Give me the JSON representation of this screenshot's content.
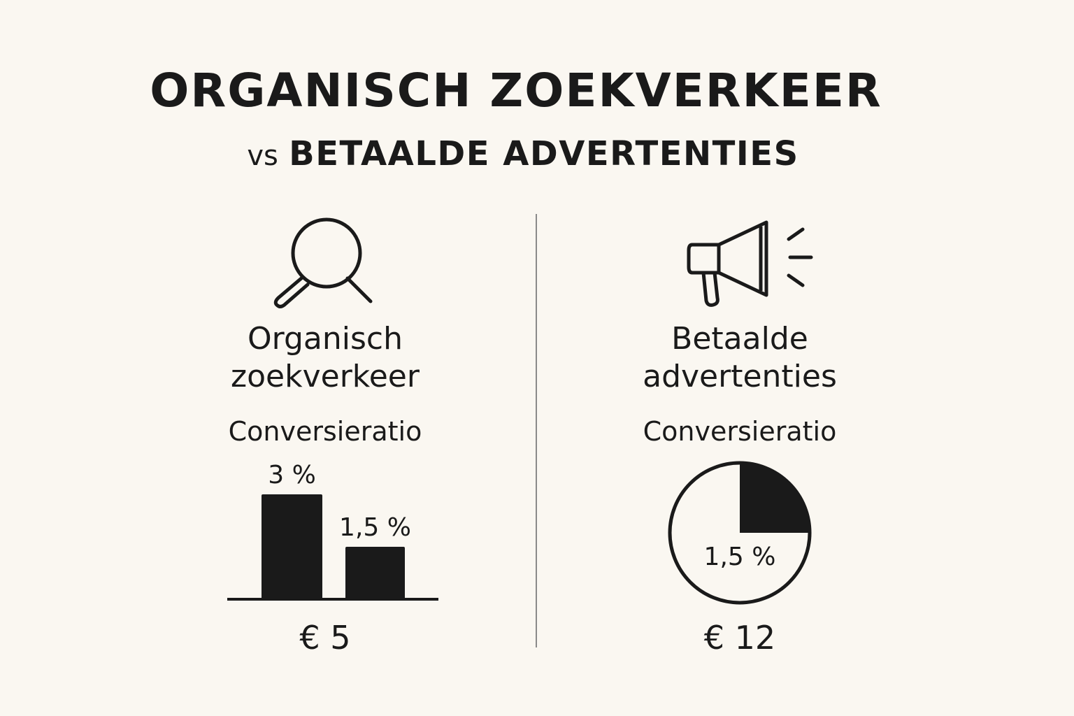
{
  "title": {
    "line1": "ORGANISCH ZOEKVERKEER",
    "line2_prefix": "vs",
    "line2_main": "BETAALDE ADVERTENTIES"
  },
  "left": {
    "icon": "search-icon",
    "title_line1": "Organisch",
    "title_line2": "zoekverkeer",
    "subtitle": "Conversieratio",
    "price": "€ 5"
  },
  "right": {
    "icon": "megaphone-icon",
    "title_line1": "Betaalde",
    "title_line2": "advertenties",
    "subtitle": "Conversieratio",
    "price": "€ 12"
  },
  "colors": {
    "ink": "#1a1a1a",
    "background": "#faf7f1",
    "divider": "#8a8a8a"
  },
  "chart_data": [
    {
      "type": "bar",
      "categories": [
        "",
        ""
      ],
      "values": [
        3,
        1.5
      ],
      "data_labels": [
        "3 %",
        "1,5 %"
      ],
      "ylim": [
        0,
        3.5
      ]
    },
    {
      "type": "pie",
      "values": [
        25,
        75
      ],
      "filled_fraction": 0.25,
      "data_labels": [
        "1,5 %"
      ]
    }
  ]
}
